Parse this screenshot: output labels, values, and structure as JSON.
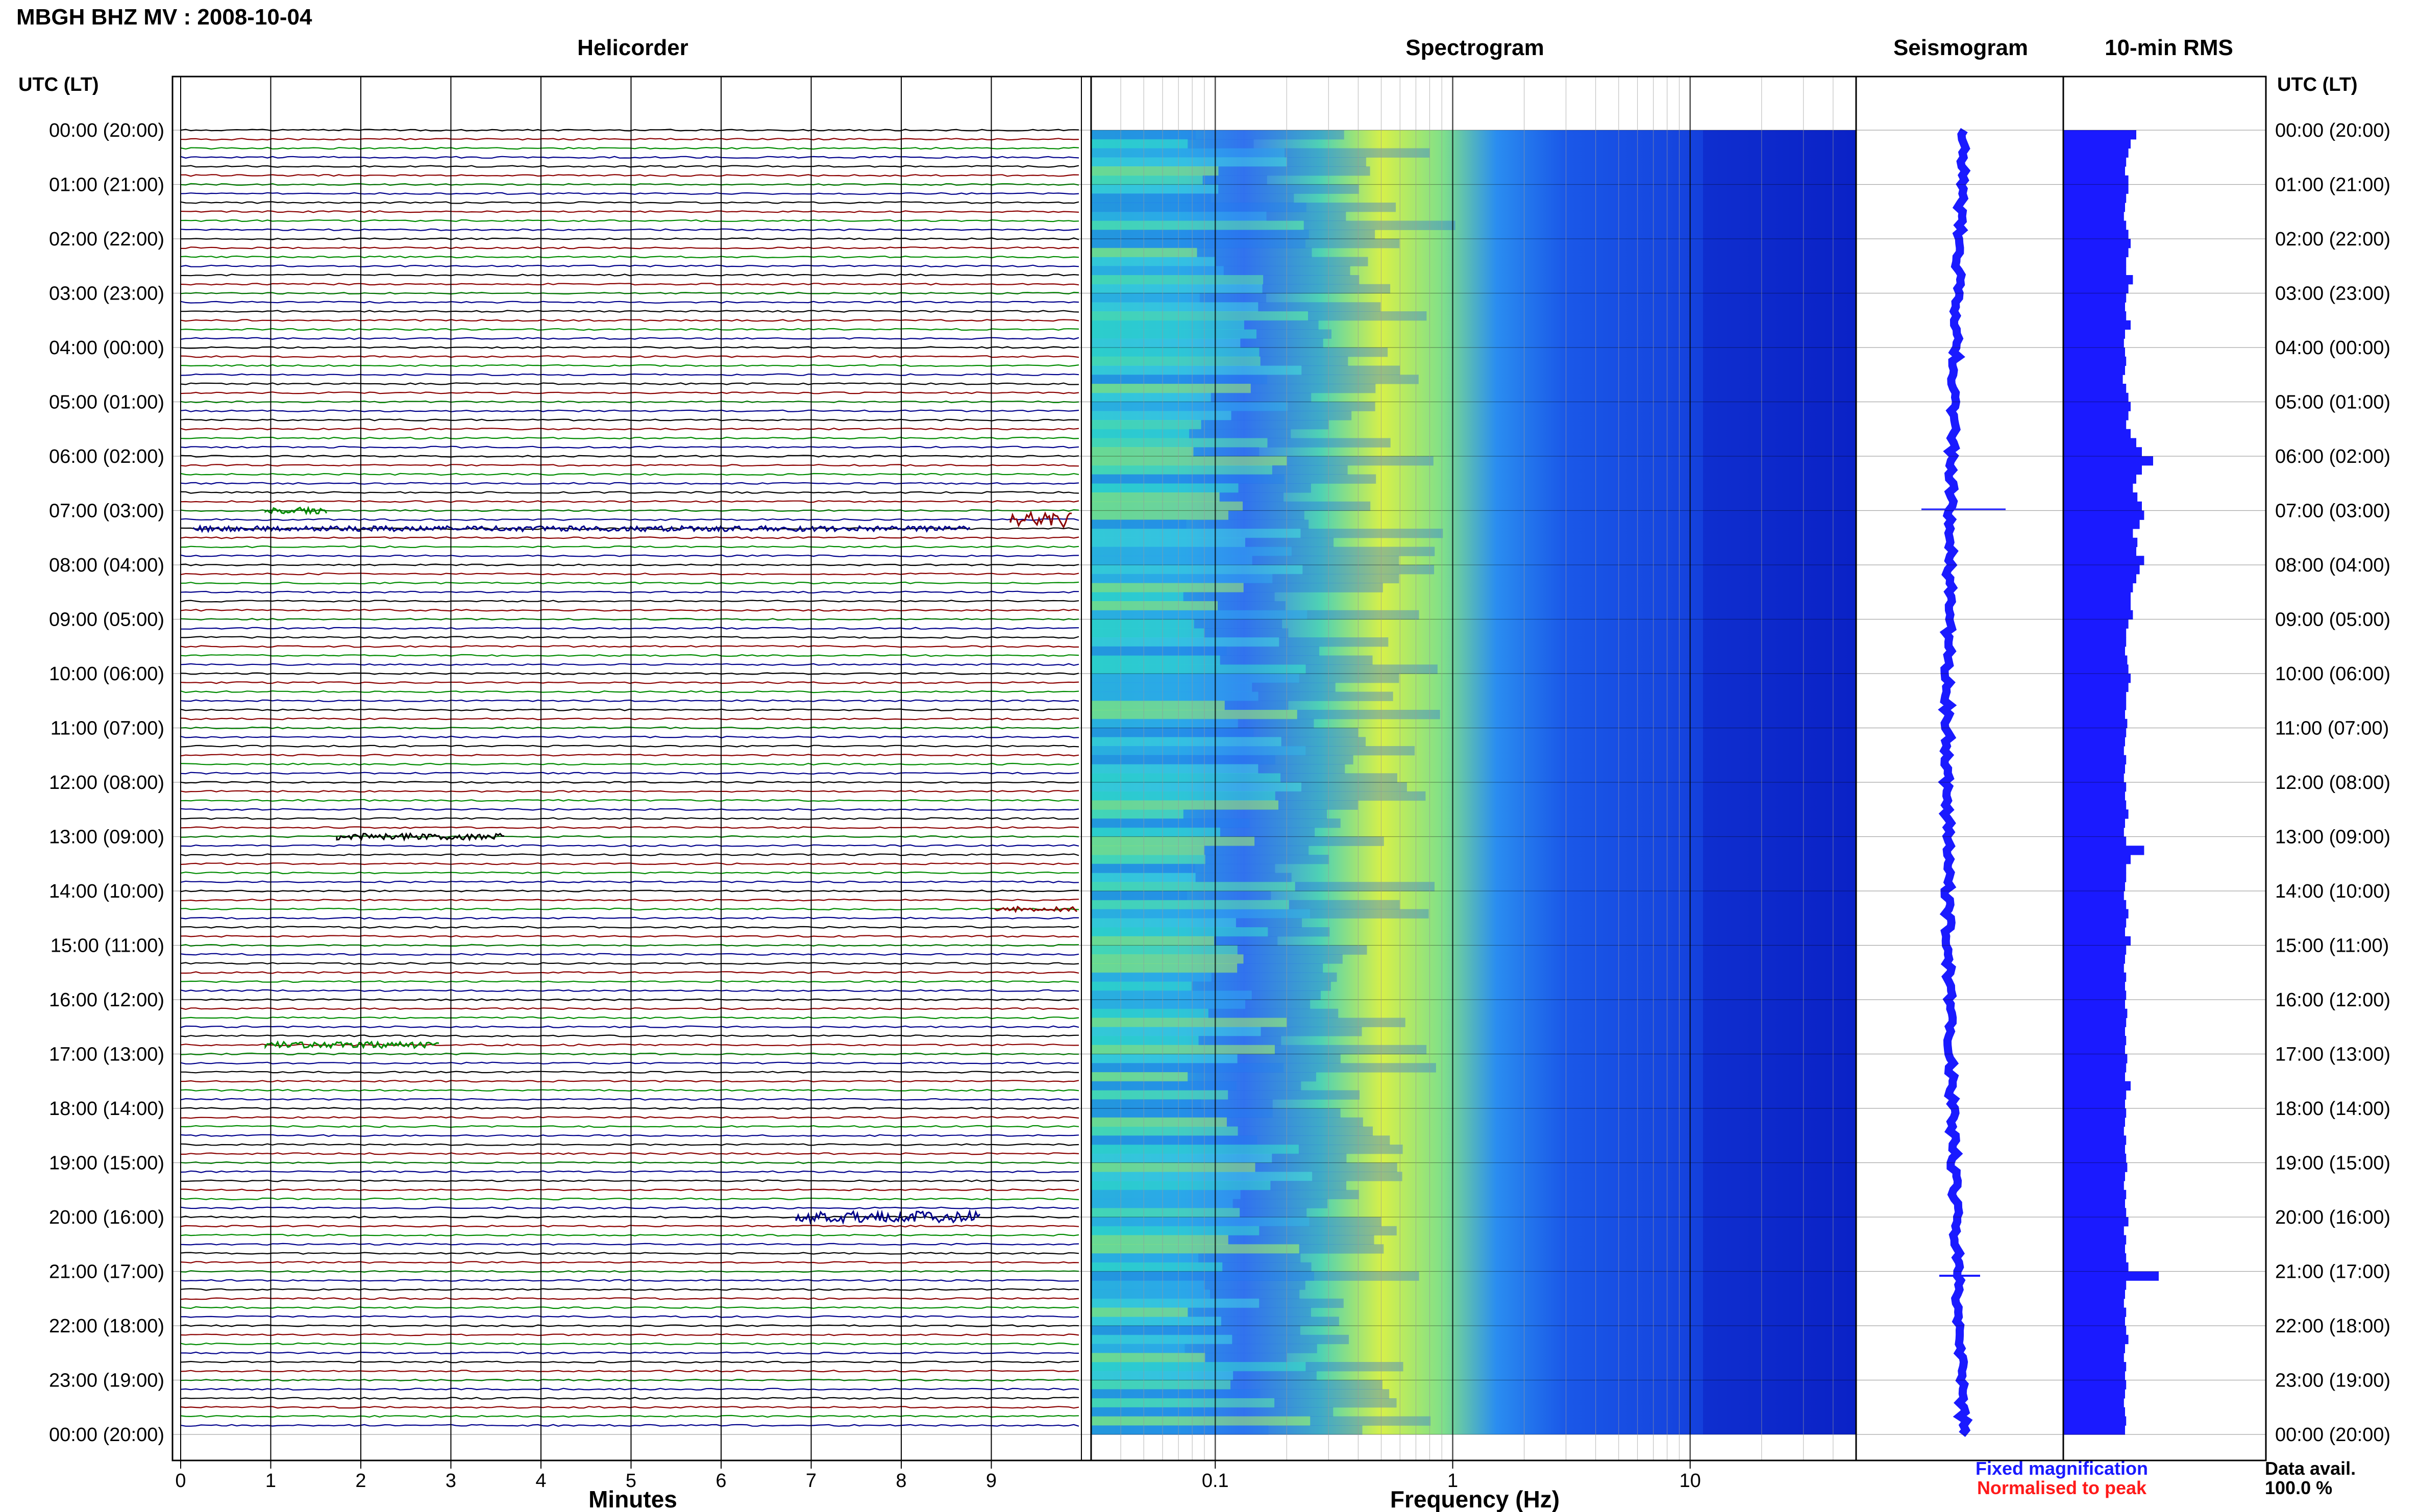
{
  "header": {
    "title": "MBGH BHZ MV : 2008-10-04",
    "left_axis_title": "UTC (LT)",
    "right_axis_title": "UTC (LT)"
  },
  "panels": {
    "helicorder": "Helicorder",
    "spectrogram": "Spectrogram",
    "seismogram": "Seismogram",
    "rms": "10-min RMS"
  },
  "axes": {
    "minutes_label": "Minutes",
    "frequency_label": "Frequency (Hz)",
    "minute_ticks": [
      "0",
      "1",
      "2",
      "3",
      "4",
      "5",
      "6",
      "7",
      "8",
      "9"
    ],
    "frequency_ticks": [
      "0.1",
      "1",
      "10"
    ]
  },
  "legend": {
    "fixed": "Fixed magnification",
    "normalised": "Normalised to peak",
    "fixed_color": "#1a1aff",
    "normalised_color": "#ff1a1a"
  },
  "availability": {
    "label": "Data avail.",
    "value": "100.0 %"
  },
  "colors": {
    "trace_cycle": [
      "#000000",
      "#8b0000",
      "#008b00",
      "#00008b"
    ],
    "seismogram": "#1a1aff",
    "rms_bar": "#1a1aff",
    "spectrogram_low": "#0b2bd6",
    "spectrogram_mid": "#2fd1d0",
    "spectrogram_high": "#f0f040"
  },
  "chart_data": {
    "type": "heatmap",
    "title": "MBGH BHZ MV : 2008-10-04",
    "time_labels": [
      "00:00 (20:00)",
      "01:00 (21:00)",
      "02:00 (22:00)",
      "03:00 (23:00)",
      "04:00 (00:00)",
      "05:00 (01:00)",
      "06:00 (02:00)",
      "07:00 (03:00)",
      "08:00 (04:00)",
      "09:00 (05:00)",
      "10:00 (06:00)",
      "11:00 (07:00)",
      "12:00 (08:00)",
      "13:00 (09:00)",
      "14:00 (10:00)",
      "15:00 (11:00)",
      "16:00 (12:00)",
      "17:00 (13:00)",
      "18:00 (14:00)",
      "19:00 (15:00)",
      "20:00 (16:00)",
      "21:00 (17:00)",
      "22:00 (18:00)",
      "23:00 (19:00)",
      "00:00 (20:00)"
    ],
    "helicorder_minutes_range": [
      0,
      10
    ],
    "spectrogram_frequency_range_hz": [
      0.03,
      50
    ],
    "frequency_scale": "log",
    "rms_10min_relative": [
      0.65,
      0.6,
      0.58,
      0.56,
      0.55,
      0.58,
      0.58,
      0.56,
      0.55,
      0.54,
      0.56,
      0.58,
      0.6,
      0.58,
      0.56,
      0.56,
      0.62,
      0.58,
      0.56,
      0.55,
      0.56,
      0.6,
      0.55,
      0.54,
      0.55,
      0.56,
      0.55,
      0.53,
      0.56,
      0.58,
      0.6,
      0.58,
      0.56,
      0.6,
      0.65,
      0.7,
      0.8,
      0.7,
      0.65,
      0.62,
      0.66,
      0.7,
      0.72,
      0.68,
      0.62,
      0.66,
      0.65,
      0.72,
      0.68,
      0.65,
      0.62,
      0.6,
      0.6,
      0.62,
      0.58,
      0.56,
      0.56,
      0.55,
      0.57,
      0.58,
      0.6,
      0.58,
      0.56,
      0.56,
      0.55,
      0.57,
      0.56,
      0.55,
      0.54,
      0.56,
      0.55,
      0.54,
      0.56,
      0.55,
      0.56,
      0.58,
      0.55,
      0.54,
      0.56,
      0.72,
      0.6,
      0.56,
      0.56,
      0.55,
      0.54,
      0.56,
      0.58,
      0.56,
      0.55,
      0.6,
      0.56,
      0.55,
      0.54,
      0.56,
      0.55,
      0.56,
      0.55,
      0.57,
      0.56,
      0.55,
      0.56,
      0.55,
      0.57,
      0.56,
      0.55,
      0.6,
      0.56,
      0.55,
      0.56,
      0.55,
      0.54,
      0.56,
      0.55,
      0.56,
      0.57,
      0.55,
      0.54,
      0.56,
      0.55,
      0.56,
      0.58,
      0.54,
      0.56,
      0.55,
      0.56,
      0.58,
      0.85,
      0.56,
      0.55,
      0.54,
      0.56,
      0.55,
      0.56,
      0.58,
      0.55,
      0.54,
      0.56,
      0.55,
      0.56,
      0.55,
      0.54,
      0.55,
      0.56,
      0.55
    ]
  }
}
